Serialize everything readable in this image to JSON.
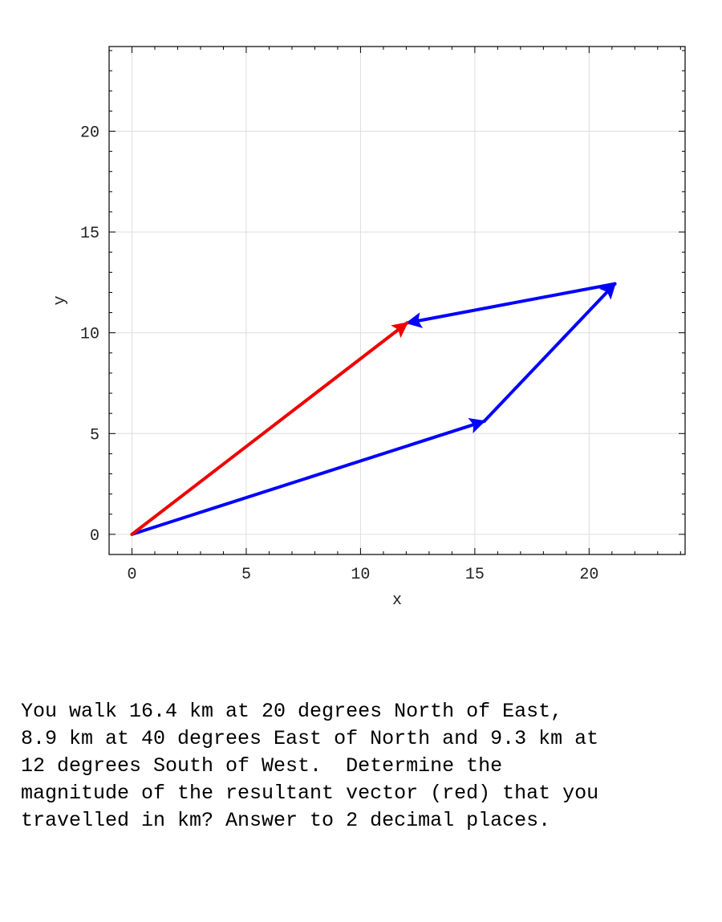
{
  "chart_data": {
    "type": "vector-diagram",
    "xlabel": "x",
    "ylabel": "y",
    "xlim": [
      -1,
      24.2
    ],
    "ylim": [
      -1,
      24.2
    ],
    "xticks": [
      0,
      5,
      10,
      15,
      20
    ],
    "yticks": [
      0,
      5,
      10,
      15,
      20
    ],
    "grid": true,
    "vectors": [
      {
        "from": [
          0,
          0
        ],
        "to": [
          15.41,
          5.61
        ],
        "color": "#0000ff"
      },
      {
        "from": [
          15.41,
          5.61
        ],
        "to": [
          21.13,
          12.43
        ],
        "color": "#0000ff"
      },
      {
        "from": [
          21.13,
          12.43
        ],
        "to": [
          12.04,
          10.49
        ],
        "color": "#0000ff"
      },
      {
        "from": [
          0,
          0
        ],
        "to": [
          12.04,
          10.49
        ],
        "color": "#ee0000"
      }
    ]
  },
  "question": {
    "lines": [
      "You walk 16.4 km at 20 degrees North of East,",
      "8.9 km at 40 degrees East of North and 9.3 km at",
      "12 degrees South of West.  Determine the",
      "magnitude of the resultant vector (red) that you",
      "travelled in km? Answer to 2 decimal places."
    ]
  }
}
